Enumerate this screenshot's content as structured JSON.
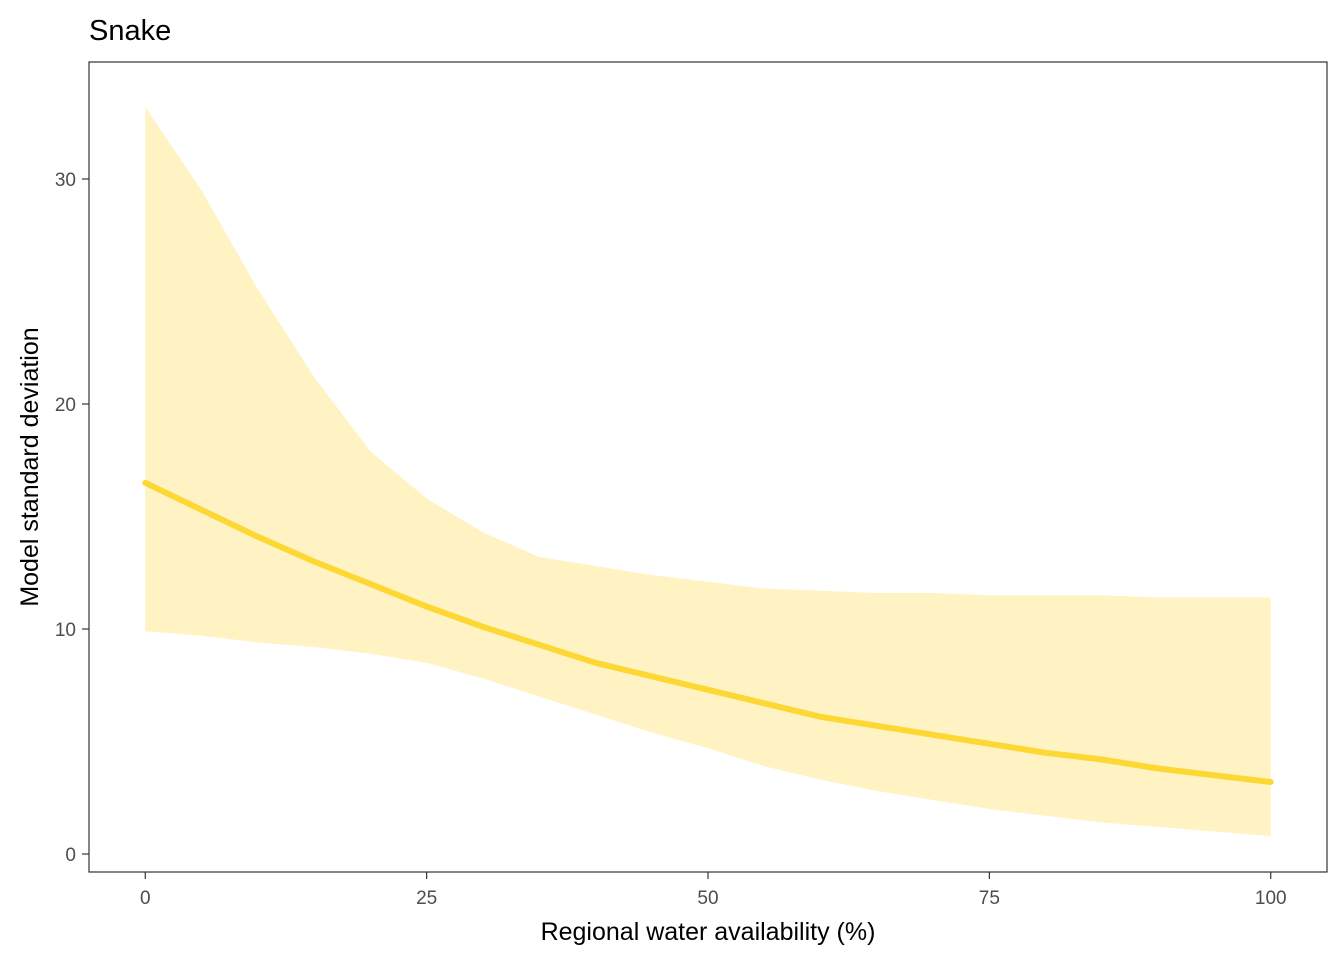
{
  "chart_data": {
    "type": "line",
    "title": "Snake",
    "xlabel": "Regional water availability (%)",
    "ylabel": "Model standard deviation",
    "xlim": [
      -5,
      105
    ],
    "ylim": [
      -0.8,
      35.2
    ],
    "x_ticks": [
      0,
      25,
      50,
      75,
      100
    ],
    "x_tick_labels": [
      "0",
      "25",
      "50",
      "75",
      "100"
    ],
    "y_ticks": [
      0,
      10,
      20,
      30
    ],
    "y_tick_labels": [
      "0",
      "10",
      "20",
      "30"
    ],
    "grid": false,
    "legend": null,
    "colors": {
      "line": "#FDD835",
      "ribbon": "#FFF3C4"
    },
    "series": [
      {
        "name": "mean",
        "x": [
          0,
          5,
          10,
          15,
          20,
          25,
          30,
          35,
          40,
          45,
          50,
          55,
          60,
          65,
          70,
          75,
          80,
          85,
          90,
          95,
          100
        ],
        "values": [
          16.5,
          15.3,
          14.1,
          13.0,
          12.0,
          11.0,
          10.1,
          9.3,
          8.5,
          7.9,
          7.3,
          6.7,
          6.1,
          5.7,
          5.3,
          4.9,
          4.5,
          4.2,
          3.8,
          3.5,
          3.2
        ]
      },
      {
        "name": "lower",
        "x": [
          0,
          5,
          10,
          15,
          20,
          25,
          30,
          35,
          40,
          45,
          50,
          55,
          60,
          65,
          70,
          75,
          80,
          85,
          90,
          95,
          100
        ],
        "values": [
          9.9,
          9.7,
          9.4,
          9.2,
          8.9,
          8.5,
          7.8,
          7.0,
          6.2,
          5.4,
          4.7,
          3.9,
          3.3,
          2.8,
          2.4,
          2.0,
          1.7,
          1.4,
          1.2,
          1.0,
          0.8
        ]
      },
      {
        "name": "upper",
        "x": [
          0,
          5,
          10,
          15,
          20,
          25,
          30,
          35,
          40,
          45,
          50,
          55,
          60,
          65,
          70,
          75,
          80,
          85,
          90,
          95,
          100
        ],
        "values": [
          33.2,
          29.5,
          25.1,
          21.2,
          17.9,
          15.8,
          14.3,
          13.2,
          12.8,
          12.4,
          12.1,
          11.8,
          11.7,
          11.6,
          11.6,
          11.5,
          11.5,
          11.5,
          11.4,
          11.4,
          11.4
        ]
      }
    ]
  }
}
